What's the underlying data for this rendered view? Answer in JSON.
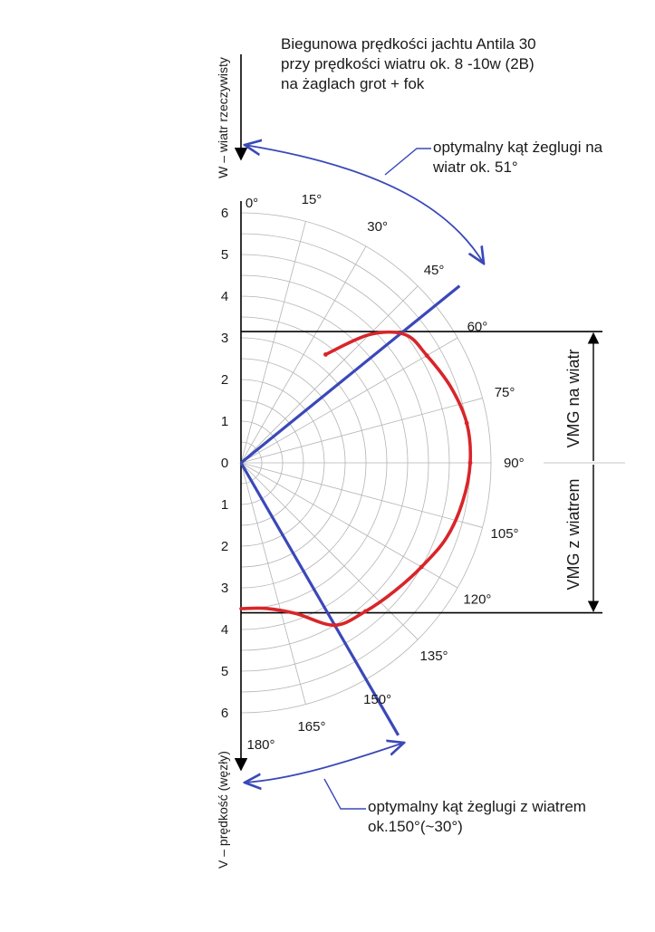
{
  "title": {
    "lines": [
      "Biegunowa prędkości jachtu Antila 30",
      "przy prędkości wiatru ok. 8 -10w (2B)",
      "na żaglach grot + fok"
    ]
  },
  "annotations": {
    "upwind": [
      "optymalny kąt żeglugi na",
      "wiatr ok. 51°"
    ],
    "downwind": [
      "optymalny kąt żeglugi z wiatrem",
      "ok.150°(~30°)"
    ],
    "vmg_upwind": "VMG na wiatr",
    "vmg_downwind": "VMG z wiatrem"
  },
  "axis_labels": {
    "wind": "W – wiatr rzeczywisty",
    "speed": "V – prędkość  (węzły)"
  },
  "colors": {
    "grid": "#b4b4b4",
    "polar_curve": "#d8252a",
    "course_lines": "#3a48b8",
    "axes": "#000000",
    "text": "#1a1a1a"
  },
  "chart_data": {
    "type": "line",
    "coordinate_system": "polar",
    "radial_axis": {
      "range": [
        0,
        6
      ],
      "tick_labels_upper": [
        "0",
        "1",
        "2",
        "3",
        "4",
        "5",
        "6"
      ],
      "tick_labels_lower": [
        "0",
        "1",
        "2",
        "3",
        "4",
        "5",
        "6"
      ]
    },
    "angular_axis": {
      "range_deg": [
        0,
        180
      ],
      "tick_labels": [
        "0°",
        "15°",
        "30°",
        "45°",
        "60°",
        "75°",
        "90°",
        "105°",
        "120°",
        "135°",
        "150°",
        "165°",
        "180°"
      ]
    },
    "grid": true,
    "series": [
      {
        "points": [
          {
            "angle": 38,
            "speed": 3.3
          },
          {
            "angle": 45,
            "speed": 4.35
          },
          {
            "angle": 52,
            "speed": 5.0
          },
          {
            "angle": 60,
            "speed": 5.15
          },
          {
            "angle": 70,
            "speed": 5.35
          },
          {
            "angle": 80,
            "speed": 5.5
          },
          {
            "angle": 90,
            "speed": 5.5
          },
          {
            "angle": 100,
            "speed": 5.4
          },
          {
            "angle": 110,
            "speed": 5.25
          },
          {
            "angle": 120,
            "speed": 5.0
          },
          {
            "angle": 130,
            "speed": 4.8
          },
          {
            "angle": 140,
            "speed": 4.65
          },
          {
            "angle": 150,
            "speed": 4.5
          },
          {
            "angle": 160,
            "speed": 3.85
          },
          {
            "angle": 170,
            "speed": 3.55
          },
          {
            "angle": 180,
            "speed": 3.5
          }
        ],
        "marker_angles": [
          38,
          60,
          80,
          90,
          120,
          140,
          150
        ]
      }
    ],
    "optimal_courses_deg": [
      51,
      150
    ],
    "vmg": {
      "upwind_knots": 3.15,
      "downwind_knots": 3.6
    }
  }
}
